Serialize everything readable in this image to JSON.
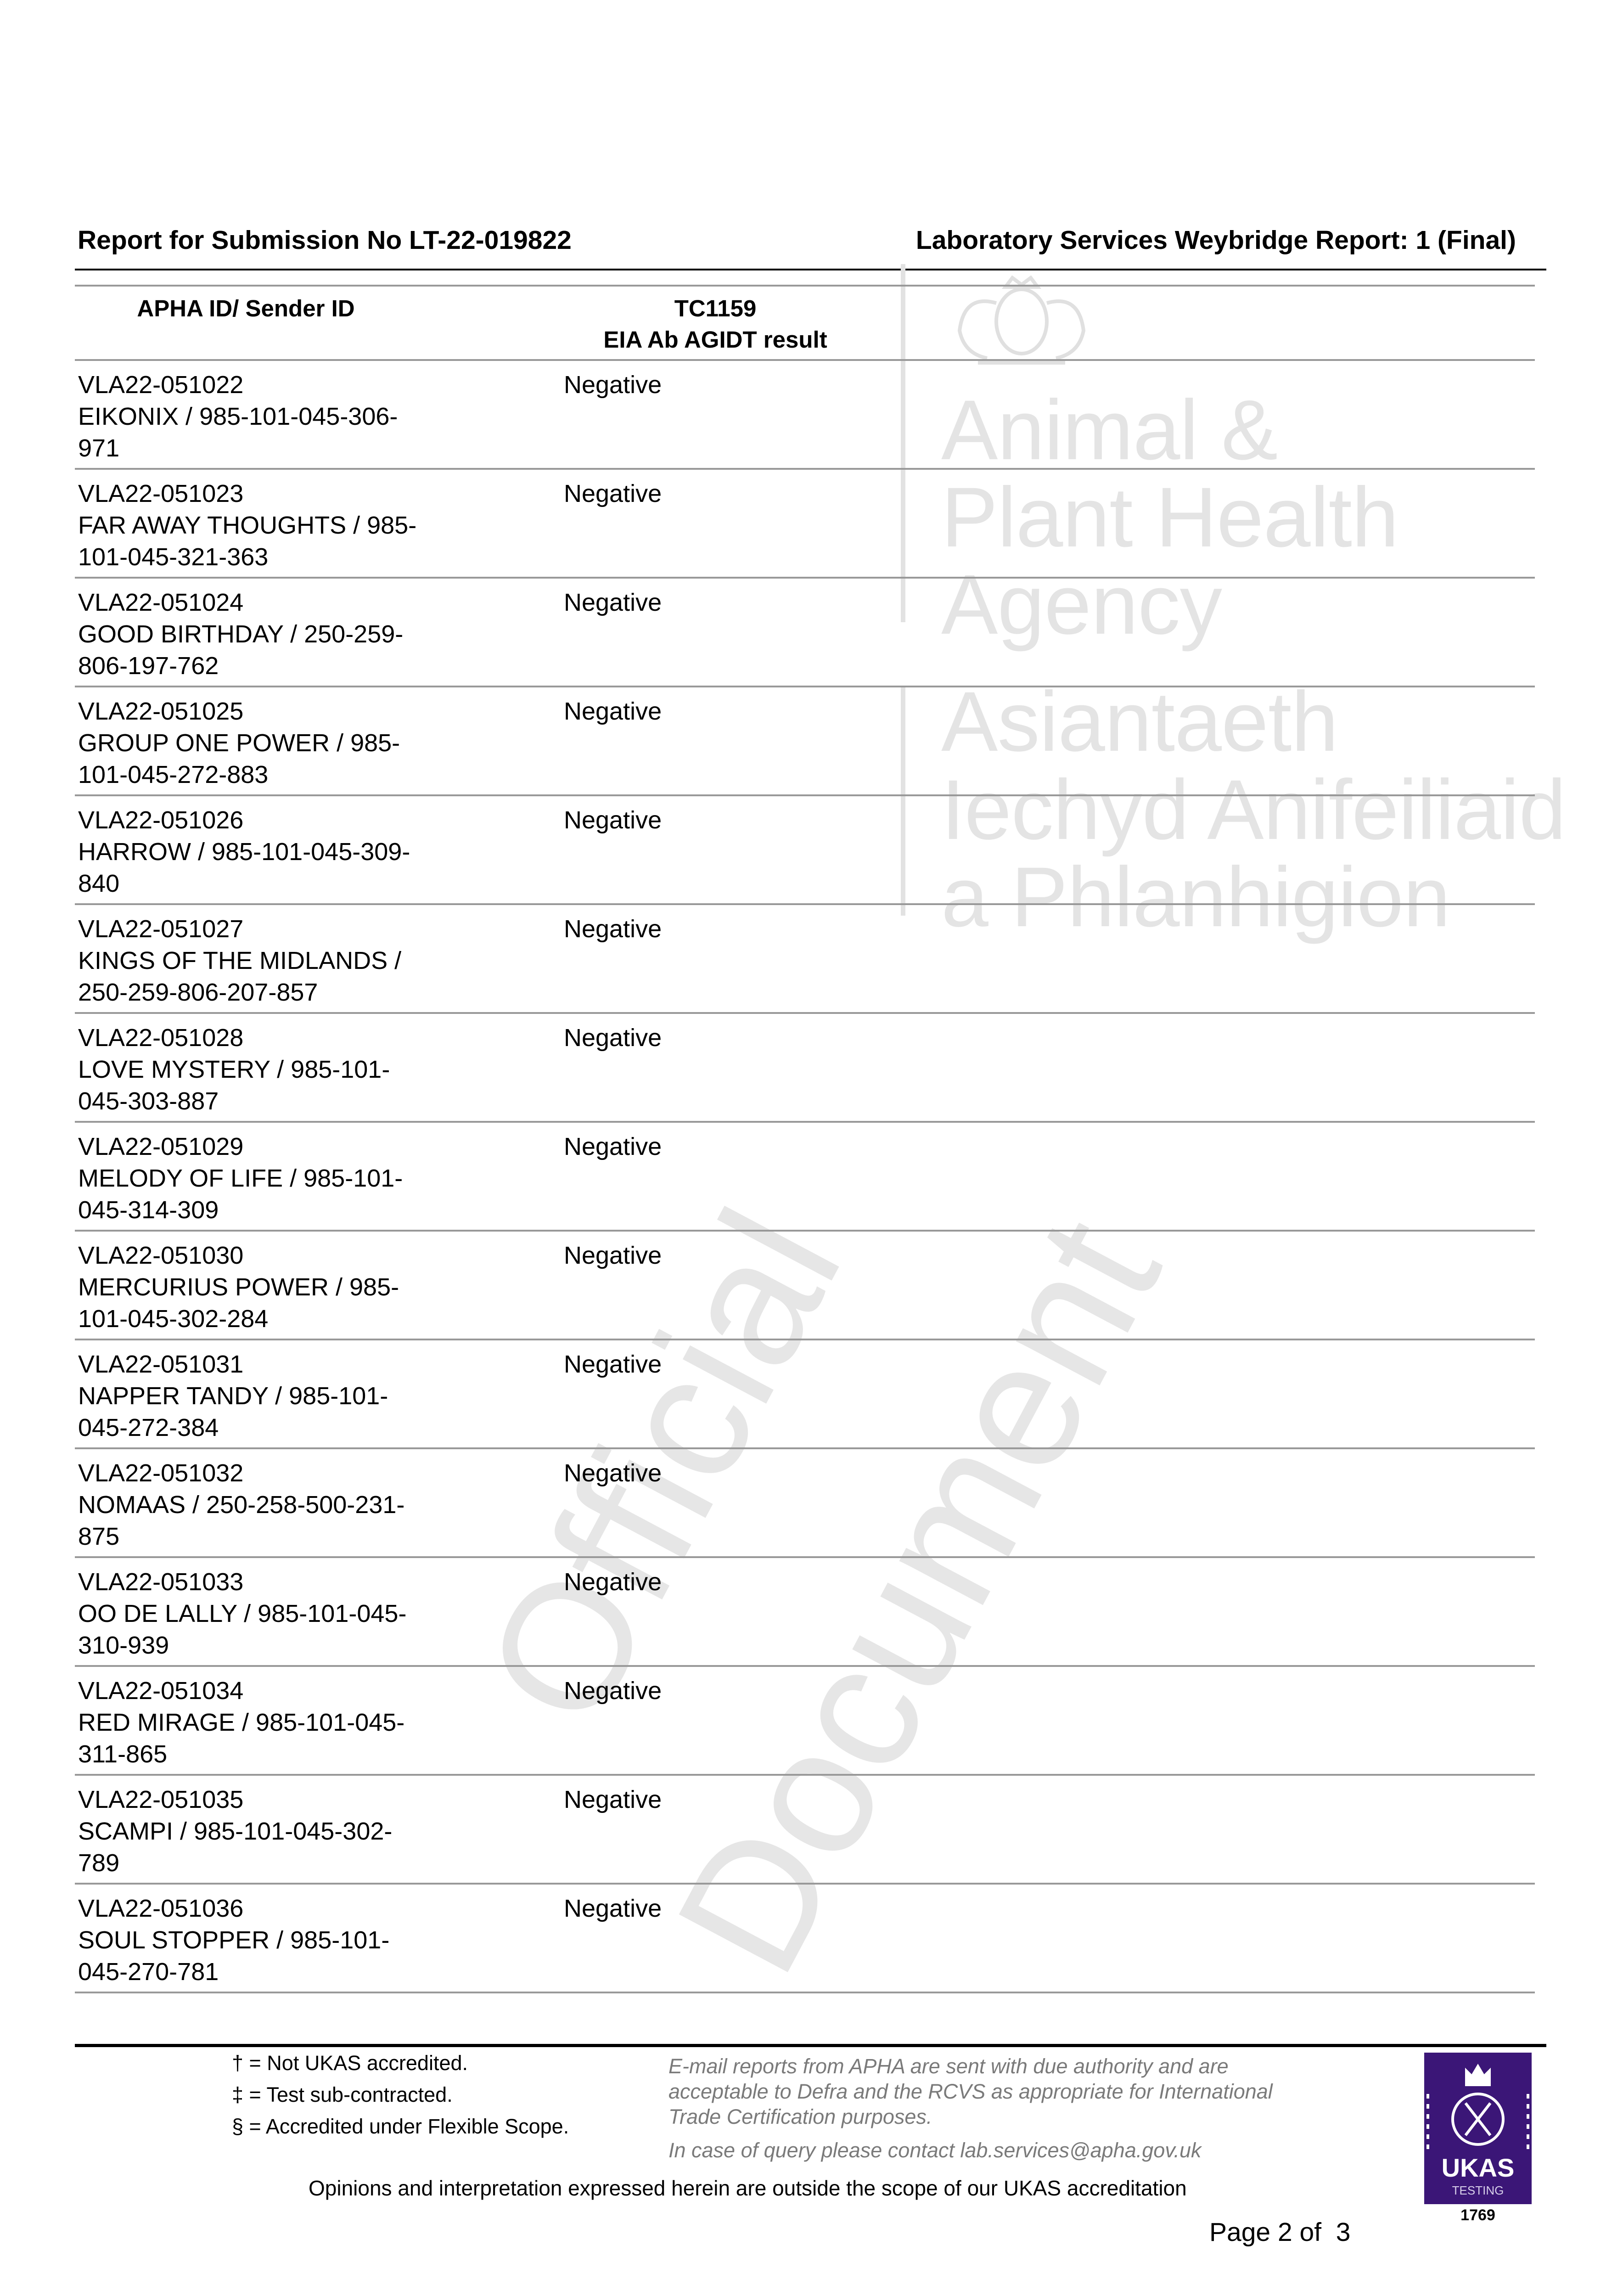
{
  "header": {
    "submission": "Report for Submission No LT-22-019822",
    "report": "Laboratory Services Weybridge Report: 1 (Final)"
  },
  "watermark": {
    "agency_en": [
      "Animal &",
      "Plant Health",
      "Agency"
    ],
    "agency_cy": [
      "Asiantaeth",
      "Iechyd Anifeiliaid",
      "a Phlanhigion"
    ],
    "official": "Official",
    "document": "Document"
  },
  "table": {
    "headers": {
      "col1": "APHA ID/ Sender ID",
      "col2_line1": "TC1159",
      "col2_line2": "EIA Ab AGIDT result"
    },
    "rows": [
      {
        "id": "VLA22-051022",
        "sender": "EIKONIX / 985-101-045-306-971",
        "result": "Negative"
      },
      {
        "id": "VLA22-051023",
        "sender": "FAR AWAY THOUGHTS / 985-101-045-321-363",
        "result": "Negative"
      },
      {
        "id": "VLA22-051024",
        "sender": "GOOD BIRTHDAY / 250-259-806-197-762",
        "result": "Negative"
      },
      {
        "id": "VLA22-051025",
        "sender": "GROUP ONE POWER / 985-101-045-272-883",
        "result": "Negative"
      },
      {
        "id": "VLA22-051026",
        "sender": "HARROW / 985-101-045-309-840",
        "result": "Negative"
      },
      {
        "id": "VLA22-051027",
        "sender": "KINGS OF THE MIDLANDS / 250-259-806-207-857",
        "result": "Negative"
      },
      {
        "id": "VLA22-051028",
        "sender": "LOVE MYSTERY / 985-101-045-303-887",
        "result": "Negative"
      },
      {
        "id": "VLA22-051029",
        "sender": "MELODY OF LIFE / 985-101-045-314-309",
        "result": "Negative"
      },
      {
        "id": "VLA22-051030",
        "sender": "MERCURIUS POWER / 985-101-045-302-284",
        "result": "Negative"
      },
      {
        "id": "VLA22-051031",
        "sender": "NAPPER TANDY / 985-101-045-272-384",
        "result": "Negative"
      },
      {
        "id": "VLA22-051032",
        "sender": "NOMAAS / 250-258-500-231-875",
        "result": "Negative"
      },
      {
        "id": "VLA22-051033",
        "sender": "OO DE LALLY / 985-101-045-310-939",
        "result": "Negative"
      },
      {
        "id": "VLA22-051034",
        "sender": "RED MIRAGE / 985-101-045-311-865",
        "result": "Negative"
      },
      {
        "id": "VLA22-051035",
        "sender": "SCAMPI / 985-101-045-302-789",
        "result": "Negative"
      },
      {
        "id": "VLA22-051036",
        "sender": "SOUL STOPPER / 985-101-045-270-781",
        "result": "Negative"
      }
    ]
  },
  "footer": {
    "footnotes": [
      "† = Not UKAS accredited.",
      "‡ = Test sub-contracted.",
      "§ = Accredited under Flexible Scope."
    ],
    "email_note": [
      "E-mail reports from APHA are sent with due authority and are",
      "acceptable to Defra and the RCVS as appropriate for International",
      "Trade Certification purposes."
    ],
    "query_note": "In case of query please contact lab.services@apha.gov.uk",
    "opinions": "Opinions and interpretation expressed herein are outside the scope of our UKAS accreditation",
    "page": "Page 2 of  3",
    "ukas": {
      "name": "UKAS",
      "type": "TESTING",
      "number": "1769",
      "color": "#3b1677"
    }
  }
}
